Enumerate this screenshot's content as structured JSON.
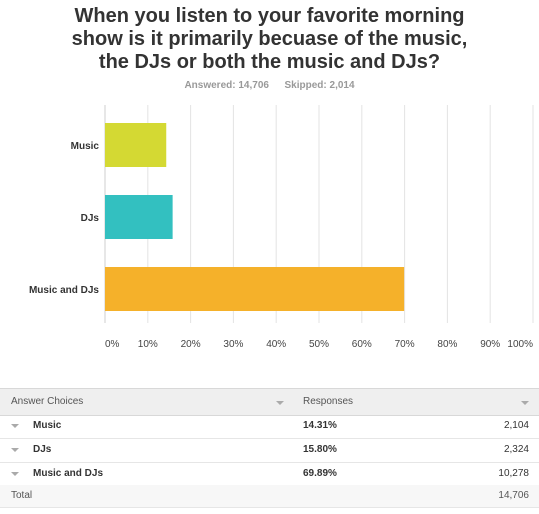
{
  "title_lines": [
    "When you listen to your favorite morning",
    "show is it primarily becuase of the music,",
    "the DJs or both the music and DJs?"
  ],
  "answered": "Answered: 14,706",
  "skipped": "Skipped: 2,014",
  "colors": {
    "bar_music": "#d4d933",
    "bar_djs": "#33c0c0",
    "bar_both": "#f5b12a",
    "grid": "#e3e3e3"
  },
  "chart_data": {
    "type": "bar",
    "orientation": "horizontal",
    "title": "When you listen to your favorite morning show is it primarily becuase of the music, the DJs or both the music and DJs?",
    "categories": [
      "Music",
      "DJs",
      "Music and DJs"
    ],
    "values": [
      14.31,
      15.8,
      69.89
    ],
    "xlim": [
      0,
      100
    ],
    "x_ticks": [
      "0%",
      "10%",
      "20%",
      "30%",
      "40%",
      "50%",
      "60%",
      "70%",
      "80%",
      "90%",
      "100%"
    ],
    "grid": true
  },
  "table": {
    "headers": {
      "answer": "Answer Choices",
      "responses": "Responses"
    },
    "rows": [
      {
        "choice": "Music",
        "percent": "14.31%",
        "count": "2,104"
      },
      {
        "choice": "DJs",
        "percent": "15.80%",
        "count": "2,324"
      },
      {
        "choice": "Music and DJs",
        "percent": "69.89%",
        "count": "10,278"
      }
    ],
    "total_label": "Total",
    "total_value": "14,706"
  }
}
